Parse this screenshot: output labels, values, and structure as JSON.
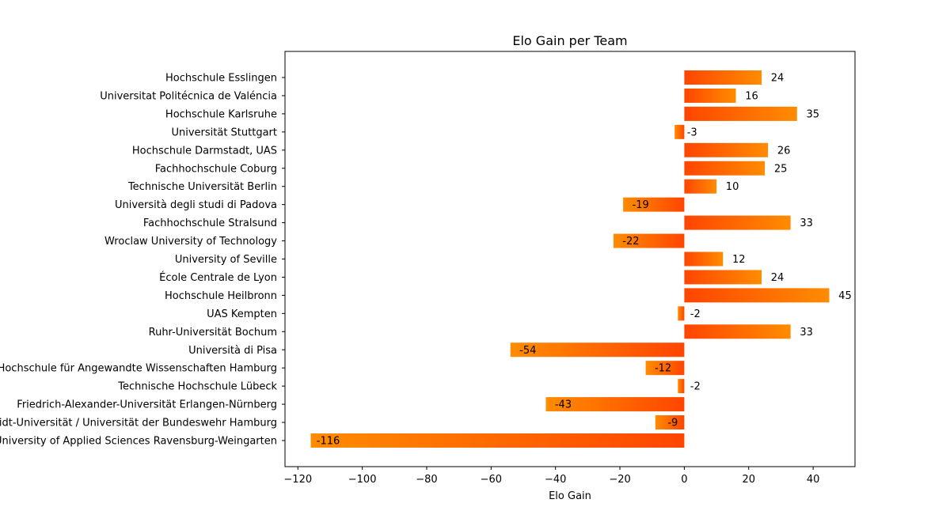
{
  "chart_data": {
    "type": "bar",
    "orientation": "horizontal",
    "title": "Elo Gain per Team",
    "xlabel": "Elo Gain",
    "ylabel": "",
    "xlim": [
      -124,
      53
    ],
    "xticks": [
      -120,
      -100,
      -80,
      -60,
      -40,
      -20,
      0,
      20,
      40
    ],
    "xtick_labels": [
      "−120",
      "−100",
      "−80",
      "−60",
      "−40",
      "−20",
      "0",
      "20",
      "40"
    ],
    "grid": false,
    "bar_colors": {
      "start": "#ff4500",
      "end": "#ff8c00"
    },
    "categories": [
      "Hochschule Esslingen",
      "Universitat Politécnica de Valéncia",
      "Hochschule Karlsruhe",
      "Universität Stuttgart",
      "Hochschule Darmstadt, UAS",
      "Fachhochschule Coburg",
      "Technische Universität Berlin",
      "Università degli studi di Padova",
      "Fachhochschule Stralsund",
      "Wroclaw University of Technology",
      "University of Seville",
      "École Centrale de Lyon",
      "Hochschule Heilbronn",
      "UAS Kempten",
      "Ruhr-Universität Bochum",
      "Università di Pisa",
      "Hochschule für Angewandte Wissenschaften Hamburg",
      "Technische Hochschule Lübeck",
      "Friedrich-Alexander-Universität Erlangen-Nürnberg",
      "Helmut-Schmidt-Universität / Universität der Bundeswehr Hamburg",
      "University of Applied Sciences Ravensburg-Weingarten"
    ],
    "values": [
      24,
      16,
      35,
      -3,
      26,
      25,
      10,
      -19,
      33,
      -22,
      12,
      24,
      45,
      -2,
      33,
      -54,
      -12,
      -2,
      -43,
      -9,
      -116
    ],
    "value_labels": [
      "24",
      "16",
      "35",
      "-3",
      "26",
      "25",
      "10",
      "-19",
      "33",
      "-22",
      "12",
      "24",
      "45",
      "-2",
      "33",
      "-54",
      "-12",
      "-2",
      "-43",
      "-9",
      "-116"
    ]
  }
}
